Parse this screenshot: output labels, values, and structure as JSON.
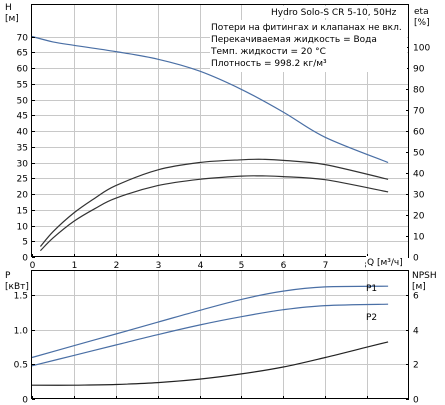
{
  "chart_data": [
    {
      "type": "line",
      "title": "Hydro Solo-S CR 5-10, 50Hz",
      "annotations": [
        "Потери на фитингах и клапанах не вкл.",
        "Перекачиваемая жидкость = Вода",
        "Темп. жидкости = 20 °C",
        "Плотность = 998.2 кг/м³"
      ],
      "xlabel": "Q [м³/ч]",
      "xlim": [
        0,
        9
      ],
      "xticks": [
        0,
        1,
        2,
        3,
        4,
        5,
        6,
        7,
        8
      ],
      "left_axis": {
        "label_top": "H",
        "label_unit": "[м]",
        "ylim": [
          0,
          80
        ],
        "ticks": [
          0,
          5,
          10,
          15,
          20,
          25,
          30,
          35,
          40,
          45,
          50,
          55,
          60,
          65,
          70
        ]
      },
      "right_axis": {
        "label_top": "eta",
        "label_unit": "[%]",
        "ylim": [
          0,
          120
        ],
        "ticks": [
          0,
          10,
          20,
          30,
          40,
          50,
          60,
          70,
          80,
          90,
          100
        ]
      },
      "grid": true,
      "series": [
        {
          "axis": "left",
          "color": "#4a6fa5",
          "x": [
            0,
            0.5,
            1,
            2,
            3,
            4,
            5,
            6,
            7,
            8.5
          ],
          "y": [
            70,
            68.3,
            67.2,
            65.2,
            62.8,
            59,
            53.2,
            46,
            38,
            30
          ]
        },
        {
          "axis": "right",
          "color": "#333333",
          "x": [
            0.2,
            0.5,
            1,
            1.5,
            2,
            3,
            4,
            5,
            5.5,
            6,
            7,
            8.5
          ],
          "y": [
            5,
            12,
            21,
            28,
            34,
            41.5,
            45,
            46.3,
            46.5,
            46,
            44,
            37
          ]
        },
        {
          "axis": "right",
          "color": "#333333",
          "x": [
            0.2,
            0.5,
            1,
            1.5,
            2,
            3,
            4,
            5,
            5.5,
            6,
            7,
            8.5
          ],
          "y": [
            3,
            9,
            17,
            23,
            28,
            34,
            37,
            38.5,
            38.6,
            38.3,
            36.8,
            31
          ]
        }
      ]
    },
    {
      "type": "line",
      "xlim": [
        0,
        9
      ],
      "xticks": [
        0,
        1,
        2,
        3,
        4,
        5,
        6,
        7,
        8
      ],
      "left_axis": {
        "label_top": "P",
        "label_unit": "[кВт]",
        "ylim": [
          0,
          1.85
        ],
        "ticks": [
          "0",
          "0.5",
          "1.0",
          "1.5"
        ]
      },
      "right_axis": {
        "label_top": "NPSH",
        "label_unit": "[м]",
        "ylim": [
          0,
          7.4
        ],
        "ticks": [
          0,
          2,
          4,
          6
        ]
      },
      "grid": true,
      "series": [
        {
          "name": "P1",
          "axis": "left",
          "color": "#4a6fa5",
          "x": [
            0,
            1,
            2,
            3,
            4,
            5,
            6,
            7,
            8.5
          ],
          "y": [
            0.6,
            0.77,
            0.94,
            1.11,
            1.28,
            1.44,
            1.56,
            1.62,
            1.63
          ]
        },
        {
          "name": "P2",
          "axis": "left",
          "color": "#4a6fa5",
          "x": [
            0,
            1,
            2,
            3,
            4,
            5,
            6,
            7,
            8.5
          ],
          "y": [
            0.48,
            0.63,
            0.78,
            0.93,
            1.07,
            1.19,
            1.29,
            1.35,
            1.37
          ]
        },
        {
          "axis": "right",
          "color": "#222222",
          "x": [
            0,
            1,
            2,
            3,
            4,
            5,
            6,
            7,
            8,
            8.5
          ],
          "y": [
            0.8,
            0.8,
            0.84,
            0.95,
            1.15,
            1.45,
            1.85,
            2.4,
            3.0,
            3.3
          ]
        }
      ]
    }
  ]
}
